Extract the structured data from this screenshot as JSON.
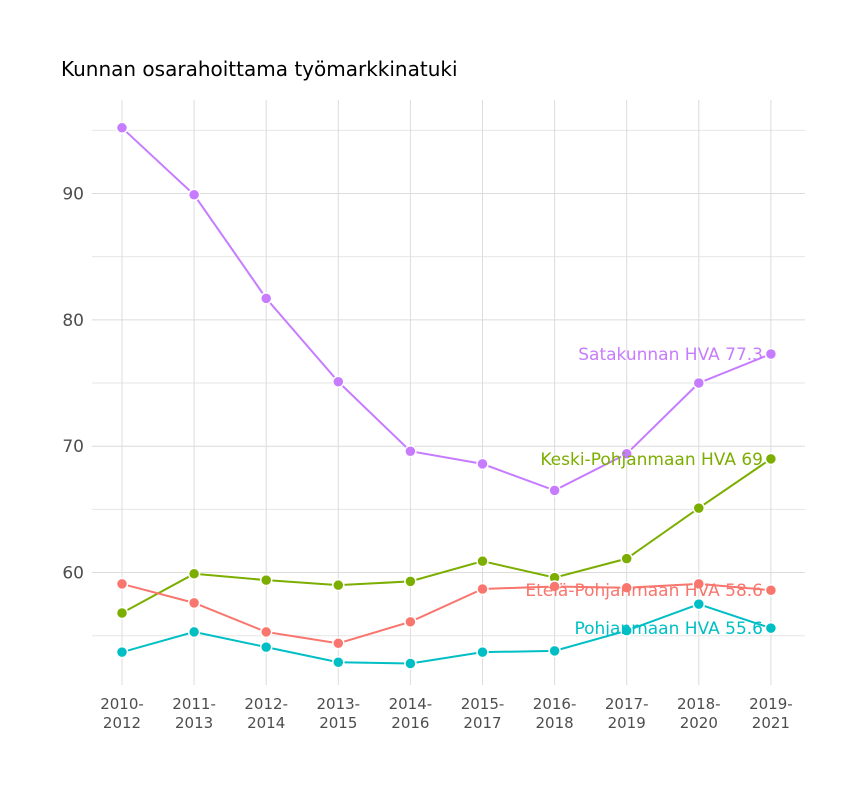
{
  "chart_data": {
    "type": "line",
    "title": "Kunnan osarahoittama työmarkkinatuki",
    "xlabel": "",
    "ylabel": "",
    "categories": [
      "2010-\n2012",
      "2011-\n2013",
      "2012-\n2014",
      "2013-\n2015",
      "2014-\n2016",
      "2015-\n2017",
      "2016-\n2018",
      "2017-\n2019",
      "2018-\n2020",
      "2019-\n2021"
    ],
    "yticks": [
      60,
      70,
      80,
      90
    ],
    "ylim": [
      51.1,
      97.4
    ],
    "grid": true,
    "legend": "none (end-of-line labels)",
    "series": [
      {
        "name": "Satakunnan HVA",
        "label": "Satakunnan HVA 77.3",
        "color": "#C77CFF",
        "values": [
          95.2,
          89.9,
          81.7,
          75.1,
          69.6,
          68.6,
          66.5,
          69.4,
          75.0,
          77.3
        ]
      },
      {
        "name": "Keski-Pohjanmaan HVA",
        "label": "Keski-Pohjanmaan HVA 69",
        "color": "#7CAE00",
        "values": [
          56.8,
          59.9,
          59.4,
          59.0,
          59.3,
          60.9,
          59.6,
          61.1,
          65.1,
          69.0
        ]
      },
      {
        "name": "Etelä-Pohjanmaan HVA",
        "label": "Etelä-Pohjanmaan HVA 58.6",
        "color": "#F8766D",
        "values": [
          59.1,
          57.6,
          55.3,
          54.4,
          56.1,
          58.7,
          58.9,
          58.8,
          59.1,
          58.6
        ]
      },
      {
        "name": "Pohjanmaan HVA",
        "label": "Pohjanmaan HVA 55.6",
        "color": "#00BFC4",
        "values": [
          53.7,
          55.3,
          54.1,
          52.9,
          52.8,
          53.7,
          53.8,
          55.4,
          57.5,
          55.6
        ]
      }
    ]
  }
}
